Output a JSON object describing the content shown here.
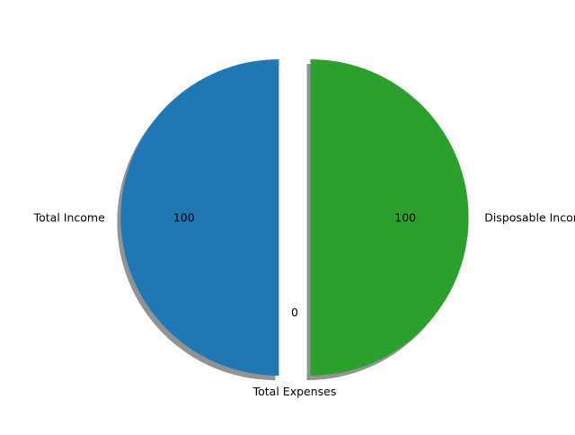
{
  "chart_data": {
    "type": "pie",
    "title": "",
    "slices": [
      {
        "label": "Total Income",
        "value": 100,
        "value_label": "100",
        "color": "#1f77b4",
        "explode": 0.1
      },
      {
        "label": "Total Expenses",
        "value": 0,
        "value_label": "0",
        "color": "#ff7f0e",
        "explode": 0
      },
      {
        "label": "Disposable Income",
        "value": 100,
        "value_label": "100",
        "color": "#2ca02c",
        "explode": 0.1
      }
    ],
    "start_angle_deg": 90,
    "shadow": true,
    "legend": "none"
  }
}
